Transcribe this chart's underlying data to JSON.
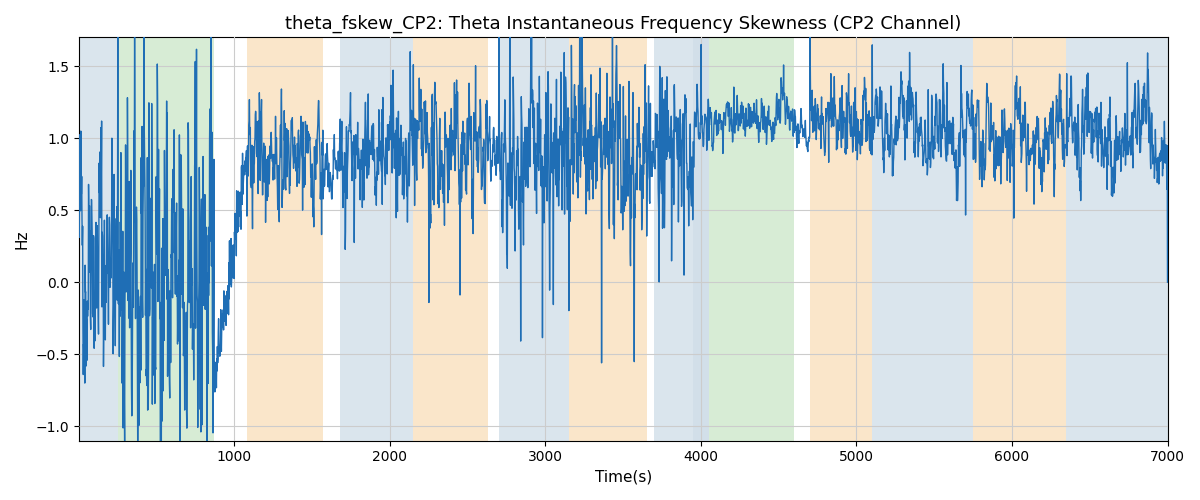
{
  "title": "theta_fskew_CP2: Theta Instantaneous Frequency Skewness (CP2 Channel)",
  "xlabel": "Time(s)",
  "ylabel": "Hz",
  "xlim": [
    0,
    7000
  ],
  "ylim": [
    -1.1,
    1.7
  ],
  "line_color": "#1f6eb5",
  "line_width": 1.0,
  "bg_bands": [
    {
      "xmin": 0,
      "xmax": 250,
      "color": "#aec6d8",
      "alpha": 0.45
    },
    {
      "xmin": 250,
      "xmax": 870,
      "color": "#a8d5a2",
      "alpha": 0.45
    },
    {
      "xmin": 1080,
      "xmax": 1570,
      "color": "#f5c98a",
      "alpha": 0.45
    },
    {
      "xmin": 1680,
      "xmax": 2150,
      "color": "#aec6d8",
      "alpha": 0.45
    },
    {
      "xmin": 2150,
      "xmax": 2630,
      "color": "#f5c98a",
      "alpha": 0.45
    },
    {
      "xmin": 2700,
      "xmax": 3150,
      "color": "#aec6d8",
      "alpha": 0.45
    },
    {
      "xmin": 3150,
      "xmax": 3650,
      "color": "#f5c98a",
      "alpha": 0.45
    },
    {
      "xmin": 3700,
      "xmax": 3950,
      "color": "#aec6d8",
      "alpha": 0.45
    },
    {
      "xmin": 3950,
      "xmax": 4050,
      "color": "#aec6d8",
      "alpha": 0.55
    },
    {
      "xmin": 4050,
      "xmax": 4600,
      "color": "#a8d5a2",
      "alpha": 0.45
    },
    {
      "xmin": 4700,
      "xmax": 5100,
      "color": "#f5c98a",
      "alpha": 0.45
    },
    {
      "xmin": 5100,
      "xmax": 5750,
      "color": "#aec6d8",
      "alpha": 0.45
    },
    {
      "xmin": 5750,
      "xmax": 6350,
      "color": "#f5c98a",
      "alpha": 0.45
    },
    {
      "xmin": 6350,
      "xmax": 7050,
      "color": "#aec6d8",
      "alpha": 0.45
    }
  ],
  "grid_color": "#cccccc",
  "bg_color": "#ffffff",
  "title_fontsize": 13,
  "label_fontsize": 11,
  "seed": 42
}
